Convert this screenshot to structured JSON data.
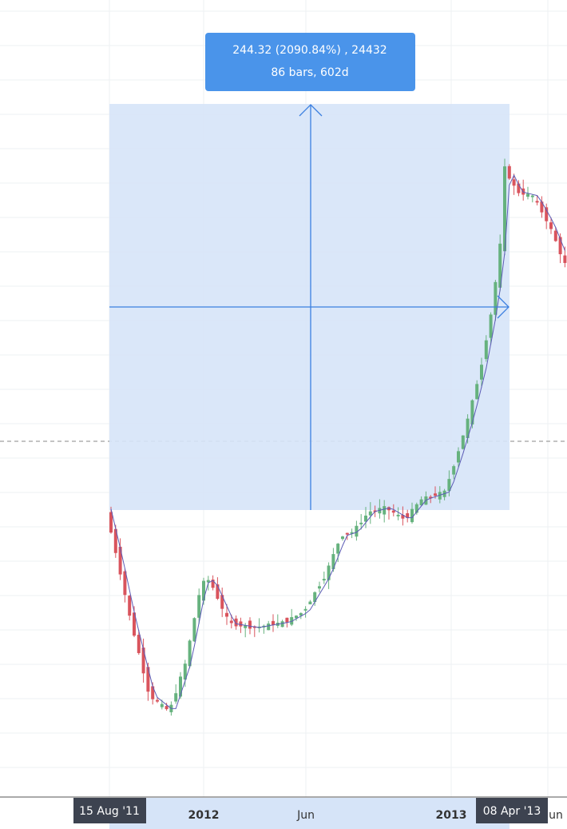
{
  "tooltip": {
    "line1": "244.32 (2090.84%) , 24432",
    "line2": "86 bars, 602d"
  },
  "time_axis": {
    "labels": [
      "2012",
      "Jun",
      "2013",
      "Jun"
    ],
    "range_start": "15 Aug '11",
    "range_end": "08 Apr '13"
  }
}
